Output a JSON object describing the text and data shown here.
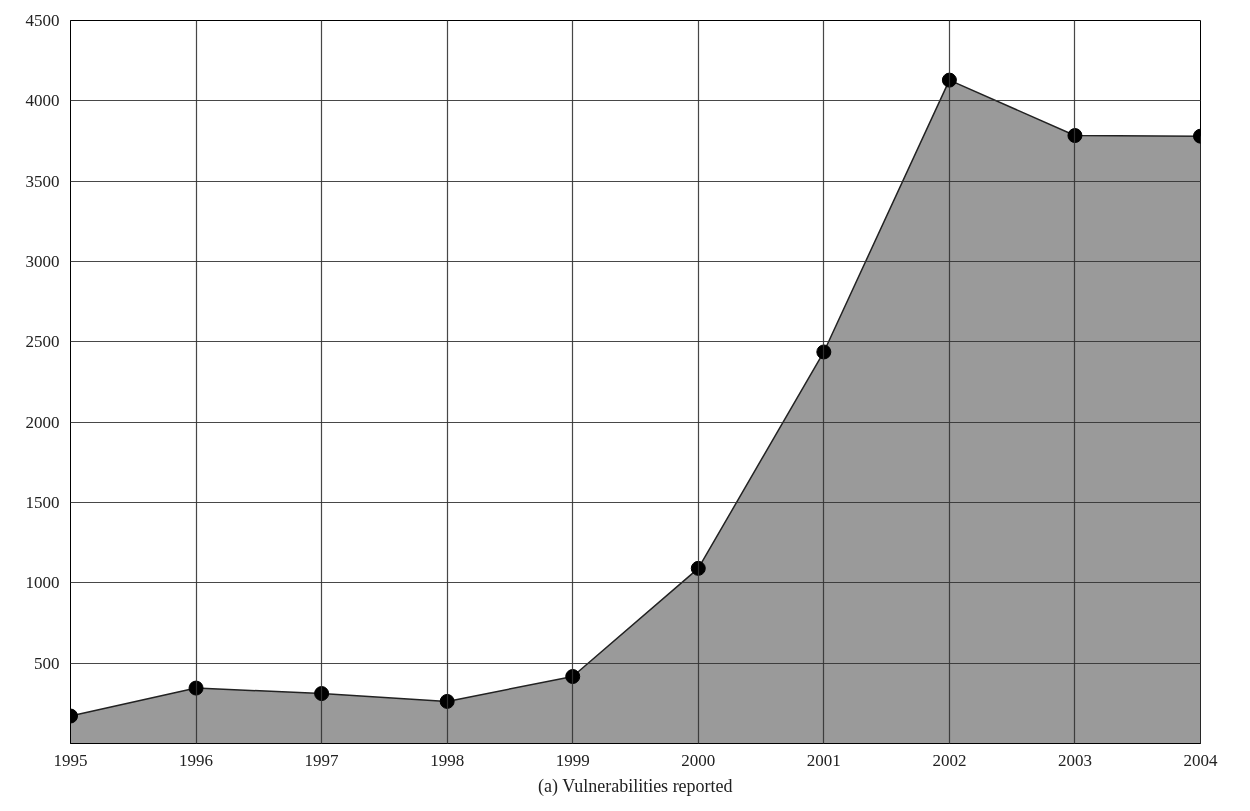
{
  "chart_data": {
    "type": "area",
    "x": [
      1995,
      1996,
      1997,
      1998,
      1999,
      2000,
      2001,
      2002,
      2003,
      2004
    ],
    "series": [
      {
        "color": "#9a9a9a",
        "values": [
          171,
          345,
          311,
          262,
          417,
          1090,
          2437,
          4129,
          3784,
          3780
        ]
      }
    ],
    "xlim": [
      1995,
      2004
    ],
    "xticks": [
      1995,
      1996,
      1997,
      1998,
      1999,
      2000,
      2001,
      2002,
      2003,
      2004
    ],
    "ylim": [
      0,
      4500
    ],
    "yticks": [
      500,
      1000,
      1500,
      2000,
      2500,
      3000,
      3500,
      4000,
      4500
    ],
    "grid": true,
    "marker": "circle",
    "annotations": [
      "(a) Vulnerabilities reported"
    ]
  }
}
